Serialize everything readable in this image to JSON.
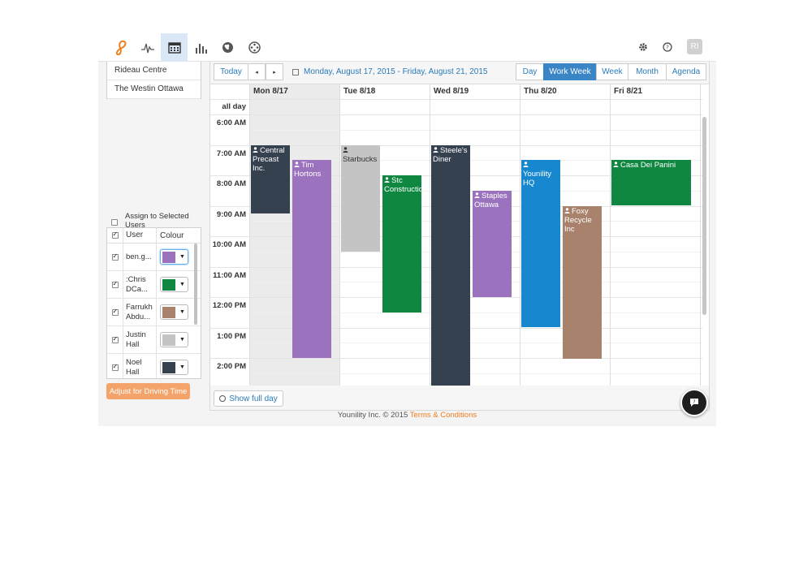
{
  "header": {
    "nav": [
      {
        "icon": "activity-icon"
      },
      {
        "icon": "calendar-icon",
        "active": true
      },
      {
        "icon": "bar-chart-icon"
      },
      {
        "icon": "globe-icon"
      },
      {
        "icon": "film-reel-icon"
      }
    ],
    "avatar_initials": "RI"
  },
  "locations": [
    "Rideau Centre",
    "The Westin Ottawa"
  ],
  "assign": {
    "label": "Assign to Selected Users"
  },
  "users_table": {
    "col_user": "User",
    "col_colour": "Colour",
    "rows": [
      {
        "name": "ben.g...",
        "colour": "#9b72bd"
      },
      {
        "name": ":Chris DCa...",
        "colour": "#0f8740"
      },
      {
        "name": "Farrukh Abdu...",
        "colour": "#a8826c"
      },
      {
        "name": "Justin Hall",
        "colour": "#c4c4c4"
      },
      {
        "name": "Noel Hall",
        "colour": "#364150"
      }
    ]
  },
  "adjust_button": "Adjust for Driving Time",
  "toolbar": {
    "today": "Today",
    "prev": "◂",
    "next": "▸",
    "date_range": "Monday, August 17, 2015 - Friday, August 21, 2015",
    "views": [
      "Day",
      "Work Week",
      "Week",
      "Month",
      "Agenda"
    ],
    "selected_view": "Work Week"
  },
  "calendar": {
    "all_day_label": "all day",
    "days": [
      "Mon 8/17",
      "Tue 8/18",
      "Wed 8/19",
      "Thu 8/20",
      "Fri 8/21"
    ],
    "times": [
      "6:00 AM",
      "7:00 AM",
      "8:00 AM",
      "9:00 AM",
      "10:00 AM",
      "11:00 AM",
      "12:00 PM",
      "1:00 PM",
      "2:00 PM"
    ],
    "events": [
      {
        "title": "Central Precast Inc.",
        "day": 0,
        "lane": 0,
        "start": 7.0,
        "end": 9.25,
        "color": "#364150"
      },
      {
        "title": "Tim Hortons",
        "day": 0,
        "lane": 1,
        "start": 7.5,
        "end": 14.0,
        "color": "#9b72bd"
      },
      {
        "title": "Starbucks",
        "day": 1,
        "lane": 0,
        "start": 7.0,
        "end": 10.5,
        "color": "#c4c4c4",
        "dark_text": true
      },
      {
        "title": "Stc Construction",
        "day": 1,
        "lane": 1,
        "start": 8.0,
        "end": 12.5,
        "color": "#0f8740"
      },
      {
        "title": "Steele's Diner",
        "day": 2,
        "lane": 0,
        "start": 7.0,
        "end": 15.0,
        "color": "#364150"
      },
      {
        "title": "Staples Ottawa",
        "day": 2,
        "lane": 1,
        "start": 8.5,
        "end": 12.0,
        "color": "#9b72bd"
      },
      {
        "title": "Younility HQ",
        "day": 3,
        "lane": 0,
        "start": 7.5,
        "end": 13.0,
        "color": "#1788d0"
      },
      {
        "title": "Foxy Recycle Inc",
        "day": 3,
        "lane": 1,
        "start": 9.0,
        "end": 14.0,
        "color": "#a8826c"
      },
      {
        "title": "Casa Dei Panini",
        "day": 4,
        "lane": 0,
        "start": 7.5,
        "end": 9.0,
        "color": "#0f8740",
        "full": true
      }
    ]
  },
  "show_full_day": "Show full day",
  "footer": {
    "text": "Younility Inc. © 2015",
    "link": "Terms & Conditions"
  }
}
